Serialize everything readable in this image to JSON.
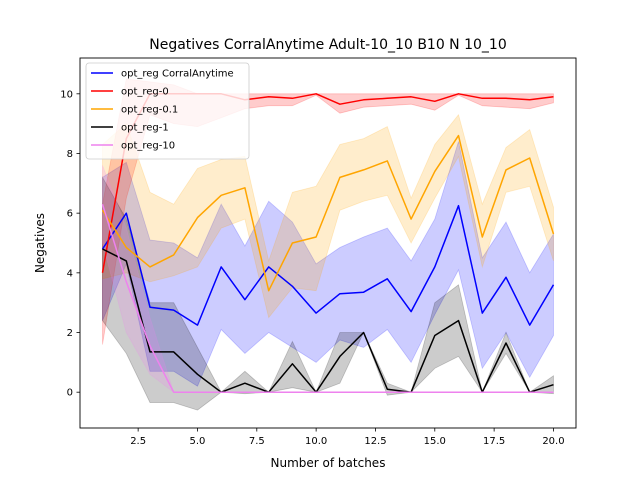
{
  "chart_data": {
    "type": "line",
    "title": "Negatives CorralAnytime Adult-10_10 B10 N 10_10",
    "xlabel": "Number of batches",
    "ylabel": "Negatives",
    "xlim": [
      0.05,
      20.95
    ],
    "ylim": [
      -1.2,
      11.2
    ],
    "xticks": [
      2.5,
      5.0,
      7.5,
      10.0,
      12.5,
      15.0,
      17.5,
      20.0
    ],
    "xtick_labels": [
      "2.5",
      "5.0",
      "7.5",
      "10.0",
      "12.5",
      "15.0",
      "17.5",
      "20.0"
    ],
    "yticks": [
      0,
      2,
      4,
      6,
      8,
      10
    ],
    "ytick_labels": [
      "0",
      "2",
      "4",
      "6",
      "8",
      "10"
    ],
    "grid": false,
    "legend_position": "top-left",
    "x": [
      1,
      2,
      3,
      4,
      5,
      6,
      7,
      8,
      9,
      10,
      11,
      12,
      13,
      14,
      15,
      16,
      17,
      18,
      19,
      20
    ],
    "series": [
      {
        "name": "opt_reg CorralAnytime",
        "color": "#0000ff",
        "values": [
          4.8,
          6.0,
          2.85,
          2.75,
          2.25,
          4.2,
          3.1,
          4.2,
          3.55,
          2.65,
          3.3,
          3.35,
          3.8,
          2.7,
          4.2,
          6.25,
          2.65,
          3.85,
          2.25,
          3.6
        ],
        "upper": [
          7.2,
          7.7,
          5.1,
          5.0,
          4.5,
          6.3,
          4.9,
          6.4,
          5.7,
          4.3,
          4.85,
          5.2,
          5.5,
          4.4,
          5.8,
          8.4,
          4.5,
          5.7,
          4.0,
          5.3
        ],
        "lower": [
          2.4,
          4.3,
          0.7,
          0.7,
          0.2,
          2.1,
          1.3,
          2.0,
          1.5,
          1.0,
          1.75,
          1.5,
          2.1,
          1.0,
          2.6,
          4.1,
          0.8,
          2.0,
          0.5,
          1.9
        ]
      },
      {
        "name": "opt_reg-0",
        "color": "#ff0000",
        "values": [
          4.0,
          8.5,
          10.0,
          10.0,
          10.0,
          10.0,
          9.8,
          9.9,
          9.85,
          10.0,
          9.65,
          9.8,
          9.85,
          9.9,
          9.75,
          10.0,
          9.85,
          9.85,
          9.8,
          9.9
        ],
        "upper": [
          6.3,
          10.5,
          10.4,
          10.3,
          10.0,
          10.0,
          10.0,
          10.0,
          10.0,
          10.0,
          10.0,
          10.0,
          10.0,
          10.0,
          10.0,
          10.0,
          10.0,
          10.0,
          10.0,
          10.0
        ],
        "lower": [
          1.6,
          6.5,
          9.3,
          9.0,
          8.9,
          9.2,
          9.5,
          9.6,
          9.6,
          9.95,
          9.35,
          9.55,
          9.6,
          9.65,
          9.45,
          9.95,
          9.6,
          9.55,
          9.5,
          9.7
        ]
      },
      {
        "name": "opt_reg-0.1",
        "color": "#ffa500",
        "values": [
          6.1,
          4.85,
          4.2,
          4.6,
          5.85,
          6.6,
          6.85,
          3.4,
          5.0,
          5.2,
          7.2,
          7.45,
          7.75,
          5.8,
          7.4,
          8.6,
          5.2,
          7.45,
          7.85,
          5.3
        ],
        "upper": [
          8.3,
          9.0,
          6.7,
          6.3,
          7.5,
          7.8,
          7.9,
          4.4,
          6.7,
          6.9,
          8.3,
          8.5,
          8.9,
          6.5,
          8.3,
          9.3,
          6.3,
          8.2,
          8.8,
          6.2
        ],
        "lower": [
          3.8,
          4.0,
          3.7,
          3.9,
          4.2,
          5.5,
          5.8,
          2.5,
          3.5,
          3.4,
          6.1,
          6.4,
          6.6,
          5.0,
          6.5,
          7.9,
          4.2,
          6.7,
          6.9,
          4.4
        ]
      },
      {
        "name": "opt_reg-1",
        "color": "#000000",
        "values": [
          4.8,
          4.4,
          1.35,
          1.35,
          0.6,
          0.0,
          0.3,
          0.0,
          0.95,
          0.0,
          1.2,
          2.0,
          0.1,
          0.0,
          1.9,
          2.4,
          0.0,
          1.65,
          0.0,
          0.25
        ],
        "upper": [
          7.2,
          5.8,
          3.0,
          3.0,
          1.5,
          0.0,
          0.7,
          0.0,
          1.7,
          0.0,
          2.0,
          2.0,
          0.3,
          0.0,
          3.0,
          3.6,
          0.0,
          2.0,
          0.0,
          0.55
        ],
        "lower": [
          2.4,
          1.3,
          -0.35,
          -0.35,
          -0.6,
          0.0,
          -0.05,
          0.0,
          0.15,
          0.0,
          0.3,
          2.0,
          -0.1,
          0.0,
          0.8,
          1.2,
          0.0,
          1.3,
          0.0,
          -0.05
        ]
      },
      {
        "name": "opt_reg-10",
        "color": "#ee82ee",
        "values": [
          6.3,
          3.7,
          1.55,
          0.0,
          0.0,
          0.0,
          0.0,
          0.0,
          0.0,
          0.0,
          0.0,
          0.0,
          0.0,
          0.0,
          0.0,
          0.0,
          0.0,
          0.0,
          0.0,
          0.0
        ],
        "upper": [
          7.6,
          5.5,
          2.5,
          0.0,
          0.0,
          0.0,
          0.0,
          0.0,
          0.0,
          0.0,
          0.0,
          0.0,
          0.0,
          0.0,
          0.0,
          0.0,
          0.0,
          0.0,
          0.0,
          0.0
        ],
        "lower": [
          5.0,
          2.0,
          0.6,
          0.0,
          0.0,
          0.0,
          0.0,
          0.0,
          0.0,
          0.0,
          0.0,
          0.0,
          0.0,
          0.0,
          0.0,
          0.0,
          0.0,
          0.0,
          0.0,
          0.0
        ]
      }
    ]
  }
}
